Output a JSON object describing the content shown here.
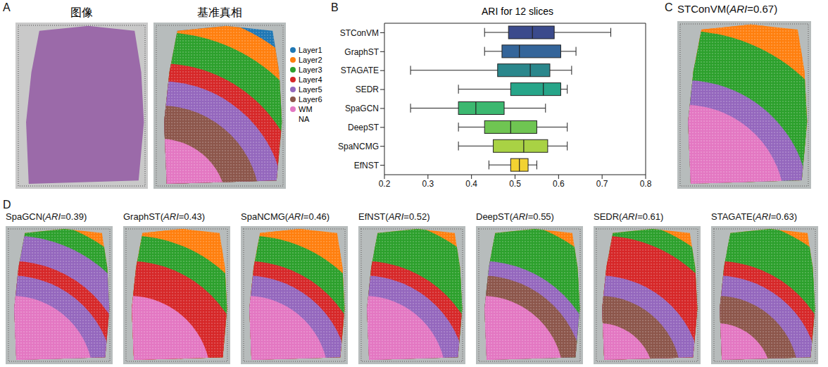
{
  "panel_letters": [
    "A",
    "B",
    "C",
    "D"
  ],
  "panel_a": {
    "image_title": "图像",
    "ground_truth_title": "基准真相",
    "layers": [
      {
        "name": "Layer1",
        "color": "#1f77b4"
      },
      {
        "name": "Layer2",
        "color": "#ff7f0e"
      },
      {
        "name": "Layer3",
        "color": "#2ca02c"
      },
      {
        "name": "Layer4",
        "color": "#d62728"
      },
      {
        "name": "Layer5",
        "color": "#9467bd"
      },
      {
        "name": "Layer6",
        "color": "#8c564b"
      },
      {
        "name": "WM",
        "color": "#e377c2"
      },
      {
        "name": "NA"
      }
    ]
  },
  "chart_data": {
    "type": "boxplot",
    "title": "ARI for 12 slices",
    "orientation": "horizontal",
    "categories": [
      "STConVM",
      "GraphST",
      "STAGATE",
      "SEDR",
      "SpaGCN",
      "DeepST",
      "SpaNCMG",
      "EfNST"
    ],
    "colors": [
      "#3b4a8c",
      "#34659a",
      "#2a878c",
      "#27a589",
      "#3cb870",
      "#6fc552",
      "#a9d244",
      "#f2d232"
    ],
    "min": [
      0.43,
      0.43,
      0.26,
      0.37,
      0.26,
      0.37,
      0.37,
      0.44
    ],
    "q1": [
      0.485,
      0.47,
      0.46,
      0.49,
      0.37,
      0.43,
      0.45,
      0.49
    ],
    "median": [
      0.54,
      0.51,
      0.535,
      0.565,
      0.41,
      0.49,
      0.52,
      0.51
    ],
    "q3": [
      0.59,
      0.605,
      0.58,
      0.605,
      0.475,
      0.55,
      0.575,
      0.53
    ],
    "max": [
      0.72,
      0.64,
      0.63,
      0.62,
      0.57,
      0.62,
      0.62,
      0.55
    ],
    "xlim": [
      0.2,
      0.8
    ],
    "xticks": [
      0.2,
      0.3,
      0.4,
      0.5,
      0.6,
      0.7,
      0.8
    ]
  },
  "metric": "ARI",
  "panel_c": {
    "label": "STConVM(ARI=0.67)"
  },
  "panel_d": [
    {
      "label": "SpaGCN(ARI=0.39)"
    },
    {
      "label": "GraphST(ARI=0.43)"
    },
    {
      "label": "SpaNCMG(ARI=0.46)"
    },
    {
      "label": "EfNST(ARI=0.52)"
    },
    {
      "label": "DeepST(ARI=0.55)"
    },
    {
      "label": "SEDR(ARI=0.61)"
    },
    {
      "label": "STAGATE(ARI=0.63)"
    }
  ]
}
